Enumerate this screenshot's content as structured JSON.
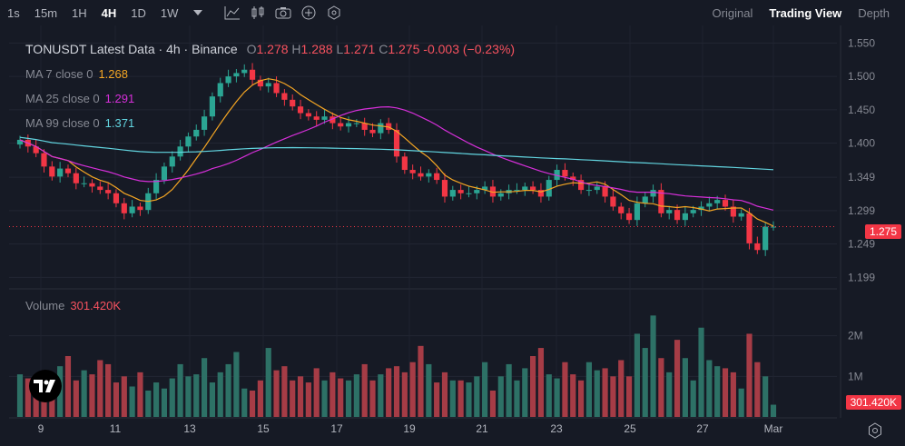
{
  "toolbar": {
    "timeframes": [
      "1s",
      "15m",
      "1H",
      "4H",
      "1D",
      "1W"
    ],
    "active_timeframe": "4H",
    "views": [
      "Original",
      "Trading View",
      "Depth"
    ],
    "active_view": "Trading View"
  },
  "legend": {
    "title": "TONUSDT Latest Data · 4h · Binance",
    "open_label": "O",
    "open": "1.278",
    "high_label": "H",
    "high": "1.288",
    "low_label": "L",
    "low": "1.271",
    "close_label": "C",
    "close": "1.275",
    "change": "-0.003 (−0.23%)",
    "ma7_label": "MA 7 close 0",
    "ma7_value": "1.268",
    "ma25_label": "MA 25 close 0",
    "ma25_value": "1.291",
    "ma99_label": "MA 99 close 0",
    "ma99_value": "1.371",
    "volume_label": "Volume",
    "volume_value": "301.420K"
  },
  "colors": {
    "background": "#161a25",
    "up": "#2ba593",
    "down": "#f23645",
    "up_volume": "#2d7166",
    "down_volume": "#a63c46",
    "ma7": "#f5a623",
    "ma25": "#d62fd9",
    "ma99": "#62d5e0"
  },
  "price_tag": "1.275",
  "volume_tag": "301.420K",
  "chart_data": {
    "type": "candlestick",
    "price_axis_ticks": [
      "1.550",
      "1.500",
      "1.450",
      "1.400",
      "1.349",
      "1.299",
      "1.249",
      "1.199"
    ],
    "volume_axis_ticks": [
      "2M",
      "1M"
    ],
    "date_ticks": [
      "9",
      "11",
      "13",
      "15",
      "17",
      "19",
      "21",
      "23",
      "25",
      "27",
      "Mar"
    ],
    "y_range": [
      1.19,
      1.56
    ],
    "volume_range": [
      0,
      3000000
    ],
    "last_price": 1.275,
    "closes": [
      1.405,
      1.395,
      1.385,
      1.365,
      1.35,
      1.362,
      1.355,
      1.34,
      1.34,
      1.335,
      1.33,
      1.325,
      1.31,
      1.295,
      1.305,
      1.3,
      1.325,
      1.345,
      1.365,
      1.38,
      1.395,
      1.41,
      1.42,
      1.44,
      1.47,
      1.49,
      1.5,
      1.505,
      1.51,
      1.495,
      1.485,
      1.49,
      1.475,
      1.465,
      1.455,
      1.445,
      1.44,
      1.435,
      1.44,
      1.43,
      1.425,
      1.43,
      1.43,
      1.42,
      1.415,
      1.43,
      1.42,
      1.38,
      1.36,
      1.355,
      1.35,
      1.355,
      1.345,
      1.32,
      1.33,
      1.325,
      1.325,
      1.33,
      1.335,
      1.32,
      1.325,
      1.33,
      1.33,
      1.335,
      1.33,
      1.32,
      1.345,
      1.36,
      1.35,
      1.345,
      1.33,
      1.33,
      1.335,
      1.32,
      1.305,
      1.295,
      1.285,
      1.31,
      1.32,
      1.33,
      1.295,
      1.3,
      1.285,
      1.295,
      1.3,
      1.305,
      1.31,
      1.315,
      1.305,
      1.29,
      1.295,
      1.25,
      1.24,
      1.275,
      1.275
    ],
    "volumes": [
      1050000,
      950000,
      700000,
      600000,
      780000,
      1250000,
      1500000,
      900000,
      1150000,
      1050000,
      1400000,
      1300000,
      850000,
      1000000,
      750000,
      1100000,
      650000,
      850000,
      700000,
      950000,
      1300000,
      1000000,
      1050000,
      1450000,
      850000,
      1100000,
      1300000,
      1600000,
      700000,
      650000,
      900000,
      1700000,
      1150000,
      1250000,
      900000,
      1000000,
      850000,
      1200000,
      900000,
      1100000,
      950000,
      900000,
      1050000,
      1300000,
      900000,
      1050000,
      1200000,
      1250000,
      1100000,
      1350000,
      1750000,
      1300000,
      850000,
      1100000,
      900000,
      900000,
      850000,
      1000000,
      1350000,
      650000,
      1000000,
      1300000,
      900000,
      1200000,
      1500000,
      1700000,
      1050000,
      950000,
      1350000,
      1050000,
      900000,
      1350000,
      1150000,
      1200000,
      1000000,
      1400000,
      1000000,
      2050000,
      1700000,
      2500000,
      1450000,
      1100000,
      1900000,
      1450000,
      900000,
      2200000,
      1400000,
      1250000,
      1200000,
      1100000,
      700000,
      2050000,
      1350000,
      1000000,
      301420
    ]
  }
}
